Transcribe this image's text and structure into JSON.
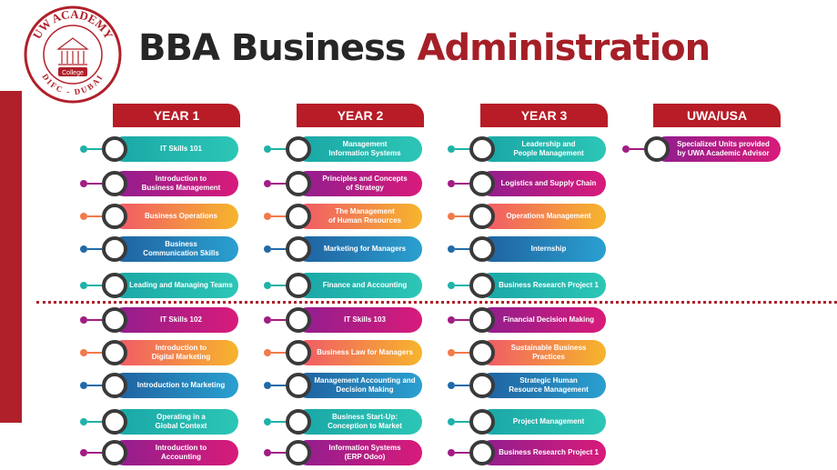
{
  "logo": {
    "top_text": "UW ACADEMY",
    "sub_text": "College",
    "bottom_text": "DIFC - DUBAI"
  },
  "title": {
    "part1": "BBA Business",
    "part2": "Administration"
  },
  "years": [
    "YEAR 1",
    "YEAR 2",
    "YEAR 3",
    "UWA/USA"
  ],
  "colors": {
    "brand_red": "#b0202a",
    "teal": "#1fb2a8",
    "purple": "#a21c85",
    "orange": "#f37a4a",
    "blue": "#216aa8"
  },
  "columns": [
    [
      {
        "label": "IT Skills 101",
        "color": "teal"
      },
      {
        "label": "Introduction to\nBusiness Management",
        "color": "purple"
      },
      {
        "label": "Business Operations",
        "color": "orange"
      },
      {
        "label": "Business\nCommunication Skills",
        "color": "blue"
      },
      {
        "label": "Leading and Managing Teams",
        "color": "teal"
      },
      {
        "label": "IT Skills 102",
        "color": "purple"
      },
      {
        "label": "Introduction to\nDigital Marketing",
        "color": "orange"
      },
      {
        "label": "Introduction to Marketing",
        "color": "blue"
      },
      {
        "label": "Operating in a\nGlobal Context",
        "color": "teal"
      },
      {
        "label": "Introduction to\nAccounting",
        "color": "purple"
      }
    ],
    [
      {
        "label": "Management\nInformation Systems",
        "color": "teal"
      },
      {
        "label": "Principles and Concepts\nof Strategy",
        "color": "purple"
      },
      {
        "label": "The Management\nof Human Resources",
        "color": "orange"
      },
      {
        "label": "Marketing for Managers",
        "color": "blue"
      },
      {
        "label": "Finance and Accounting",
        "color": "teal"
      },
      {
        "label": "IT Skills 103",
        "color": "purple"
      },
      {
        "label": "Business Law for Managers",
        "color": "orange"
      },
      {
        "label": "Management Accounting and\nDecision Making",
        "color": "blue"
      },
      {
        "label": "Business Start-Up:\nConception to Market",
        "color": "teal"
      },
      {
        "label": "Information Systems\n(ERP Odoo)",
        "color": "purple"
      }
    ],
    [
      {
        "label": "Leadership and\nPeople Management",
        "color": "teal"
      },
      {
        "label": "Logistics and Supply Chain",
        "color": "purple"
      },
      {
        "label": "Operations Management",
        "color": "orange"
      },
      {
        "label": "Internship",
        "color": "blue"
      },
      {
        "label": "Business Research Project 1",
        "color": "teal"
      },
      {
        "label": "Financial Decision Making",
        "color": "purple"
      },
      {
        "label": "Sustainable Business Practices",
        "color": "orange"
      },
      {
        "label": "Strategic Human\nResource Management",
        "color": "blue"
      },
      {
        "label": "Project Management",
        "color": "teal"
      },
      {
        "label": "Business Research Project 1",
        "color": "purple"
      }
    ],
    [
      {
        "label": "Specialized Units provided\nby UWA Academic Advisor",
        "color": "purple"
      }
    ]
  ]
}
